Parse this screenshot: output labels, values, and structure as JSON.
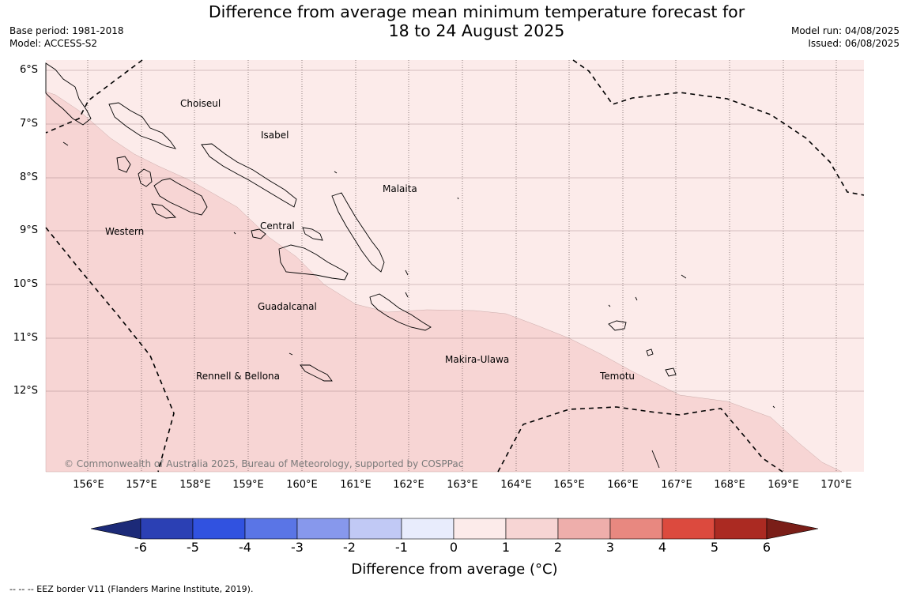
{
  "title_line1": "Difference from average mean minimum temperature forecast for",
  "title_line2": "18 to 24 August 2025",
  "meta_left": {
    "base_period": "Base period: 1981-2018",
    "model": "Model: ACCESS-S2"
  },
  "meta_right": {
    "model_run": "Model run: 04/08/2025",
    "issued": "Issued: 06/08/2025"
  },
  "regions": {
    "choiseul": "Choiseul",
    "isabel": "Isabel",
    "malaita": "Malaita",
    "western": "Western",
    "central": "Central",
    "guadalcanal": "Guadalcanal",
    "makira": "Makira-Ulawa",
    "rennell": "Rennell & Bellona",
    "temotu": "Temotu"
  },
  "lat_labels": [
    "6°S",
    "7°S",
    "8°S",
    "9°S",
    "10°S",
    "11°S",
    "12°S"
  ],
  "lon_labels": [
    "156°E",
    "157°E",
    "158°E",
    "159°E",
    "160°E",
    "161°E",
    "162°E",
    "163°E",
    "164°E",
    "165°E",
    "166°E",
    "167°E",
    "168°E",
    "169°E",
    "170°E"
  ],
  "copyright": "© Commonwealth of Australia 2025, Bureau of Meteorology, supported by COSPPac",
  "colorbar": {
    "ticks": [
      "-6",
      "-5",
      "-4",
      "-3",
      "-2",
      "-1",
      "0",
      "1",
      "2",
      "3",
      "4",
      "5",
      "6"
    ],
    "colors": [
      "#1c2a78",
      "#2b40b4",
      "#3152e0",
      "#5a75e6",
      "#8798ec",
      "#c1c9f5",
      "#e8ecfc",
      "#fcebea",
      "#f7d5d4",
      "#eeaeab",
      "#e88880",
      "#dc4a3e",
      "#ab2a22",
      "#7a1e18"
    ],
    "label": "Difference from average (°C)"
  },
  "map_fill": {
    "band_0_1": "#fcebea",
    "band_1_2": "#f7d5d4"
  },
  "footnote": "--  --  -- EEZ border V11 (Flanders Marine Institute, 2019)."
}
